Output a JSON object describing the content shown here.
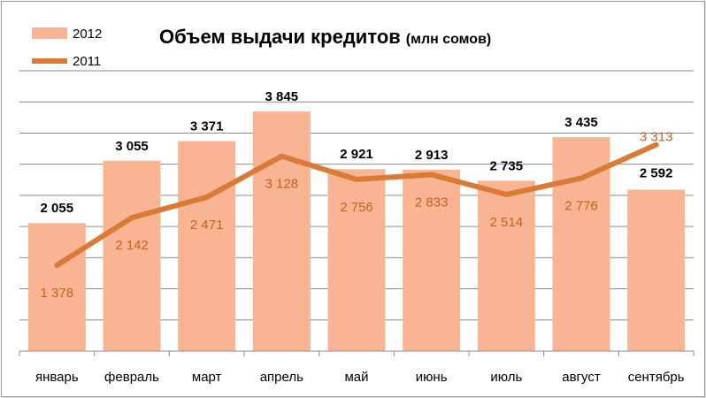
{
  "chart_data": {
    "type": "bar",
    "title": "Объем выдачи кредитов",
    "subtitle": "(млн сомов)",
    "categories": [
      "январь",
      "февраль",
      "март",
      "апрель",
      "май",
      "июнь",
      "июль",
      "август",
      "сентябрь"
    ],
    "series": [
      {
        "name": "2012",
        "type": "bar",
        "values": [
          2055,
          3055,
          3371,
          3845,
          2921,
          2913,
          2735,
          3435,
          2592
        ],
        "labels": [
          "2 055",
          "3 055",
          "3 371",
          "3 845",
          "2 921",
          "2 913",
          "2 735",
          "3 435",
          "2 592"
        ],
        "color": "#f8b493"
      },
      {
        "name": "2011",
        "type": "line",
        "values": [
          1378,
          2142,
          2471,
          3128,
          2756,
          2833,
          2514,
          2776,
          3313
        ],
        "labels": [
          "1 378",
          "2 142",
          "2 471",
          "3 128",
          "2 756",
          "2 833",
          "2 514",
          "2 776",
          "3 313"
        ],
        "color": "#d97a36",
        "label_color": "#c0631f"
      }
    ],
    "ylim": [
      0,
      4500
    ],
    "grid": true,
    "legend": "top-left"
  }
}
